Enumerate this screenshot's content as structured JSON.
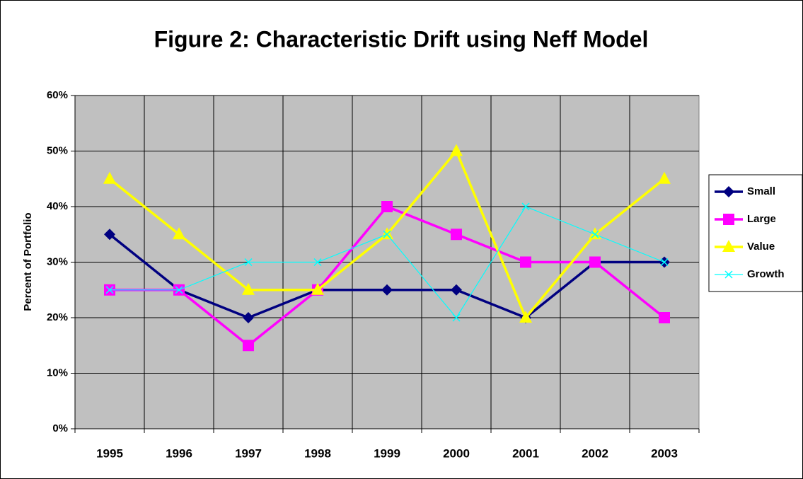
{
  "chart_data": {
    "type": "line",
    "title": "Figure 2: Characteristic Drift using Neff Model",
    "y_label": "Percent of Portfolio",
    "categories": [
      "1995",
      "1996",
      "1997",
      "1998",
      "1999",
      "2000",
      "2001",
      "2002",
      "2003"
    ],
    "series": [
      {
        "name": "Small",
        "color": "#000080",
        "marker": "diamond",
        "values": [
          35,
          25,
          20,
          25,
          25,
          25,
          20,
          30,
          30
        ]
      },
      {
        "name": "Large",
        "color": "#FF00FF",
        "marker": "square",
        "values": [
          25,
          25,
          15,
          25,
          40,
          35,
          30,
          30,
          20
        ]
      },
      {
        "name": "Value",
        "color": "#FFFF00",
        "marker": "triangle",
        "values": [
          45,
          35,
          25,
          25,
          35,
          50,
          20,
          35,
          45
        ]
      },
      {
        "name": "Growth",
        "color": "#00FFFF",
        "marker": "x",
        "values": [
          25,
          25,
          30,
          30,
          35,
          20,
          40,
          35,
          30
        ]
      }
    ],
    "ylim": [
      0,
      60
    ],
    "yticks": [
      {
        "value": 0,
        "label": "0%"
      },
      {
        "value": 10,
        "label": "10%"
      },
      {
        "value": 20,
        "label": "20%"
      },
      {
        "value": 30,
        "label": "30%"
      },
      {
        "value": 40,
        "label": "40%"
      },
      {
        "value": 50,
        "label": "50%"
      },
      {
        "value": 60,
        "label": "60%"
      }
    ],
    "grid": true,
    "legend": "right",
    "plot_background": "#C0C0C0"
  }
}
